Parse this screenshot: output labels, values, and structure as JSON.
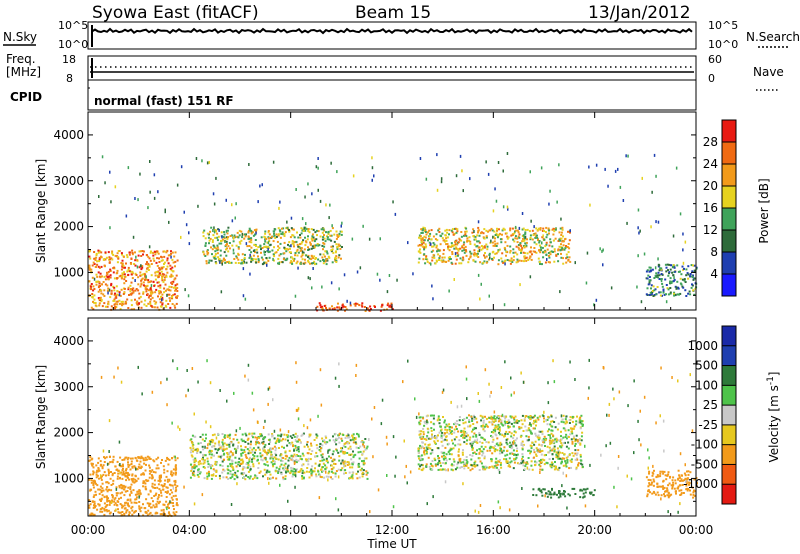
{
  "header": {
    "title": "Syowa East (fitACF)",
    "beam": "Beam 15",
    "date": "13/Jan/2012"
  },
  "left_labels": {
    "nsky": "N.Sky",
    "freq_line1": "Freq.",
    "freq_line2": "[MHz]",
    "cpid": "CPID"
  },
  "right_labels": {
    "nsearch": "N.Search",
    "nave": "Nave"
  },
  "small_ticks": {
    "noise_left_top": "10^5",
    "noise_left_bottom": "10^0",
    "noise_right_top": "10^5",
    "noise_right_bottom": "10^0",
    "freq_left_top": "18",
    "freq_left_bottom": "8",
    "nave_right_top": "60",
    "nave_right_bottom": "0"
  },
  "cpid_text": "normal (fast) 151 RF",
  "colors": {
    "power_scale": [
      "#1a1aff",
      "#1f3fb0",
      "#2e6b3a",
      "#3fa35a",
      "#e6d21f",
      "#f29a1a",
      "#f06a12",
      "#e81a12"
    ],
    "velocity_scale": [
      "#e41a12",
      "#f05a12",
      "#f29a1a",
      "#e6c81f",
      "#c8c8c8",
      "#4ec34a",
      "#2e7a3a",
      "#1f3fb0",
      "#1a2aa8"
    ]
  },
  "chart_data": [
    {
      "type": "heatmap",
      "name": "Power",
      "ylabel": "Slant Range [km]",
      "xlim": [
        "00:00",
        "24:00"
      ],
      "ylim": [
        180,
        4500
      ],
      "y_ticks": [
        "1000",
        "2000",
        "3000",
        "4000"
      ],
      "colorbar": {
        "label": "Power [dB]",
        "ticks": [
          "4",
          "8",
          "12",
          "16",
          "20",
          "24",
          "28"
        ],
        "range": [
          0,
          30
        ]
      },
      "features": [
        {
          "time_start": "00:00",
          "time_end": "03:30",
          "range_start": 200,
          "range_end": 1500,
          "power_db": 22
        },
        {
          "time_start": "04:30",
          "time_end": "10:00",
          "range_start": 1200,
          "range_end": 2000,
          "power_db": 16
        },
        {
          "time_start": "13:00",
          "time_end": "19:00",
          "range_start": 1200,
          "range_end": 2000,
          "power_db": 18
        },
        {
          "time_start": "09:00",
          "time_end": "12:00",
          "range_start": 180,
          "range_end": 350,
          "power_db": 26
        },
        {
          "time_start": "22:00",
          "time_end": "24:00",
          "range_start": 500,
          "range_end": 1200,
          "power_db": 10
        }
      ]
    },
    {
      "type": "heatmap",
      "name": "Velocity",
      "ylabel": "Slant Range [km]",
      "xlabel": "Time UT",
      "xlim": [
        "00:00",
        "24:00"
      ],
      "ylim": [
        180,
        4500
      ],
      "x_ticks": [
        "00:00",
        "04:00",
        "08:00",
        "12:00",
        "16:00",
        "20:00",
        "00:00"
      ],
      "y_ticks": [
        "1000",
        "2000",
        "3000",
        "4000"
      ],
      "colorbar": {
        "label": "Velocity [m s^-1]",
        "ticks": [
          "1000",
          "500",
          "100",
          "25",
          "-25",
          "-100",
          "-500",
          "-1000"
        ]
      },
      "features": [
        {
          "time_start": "00:00",
          "time_end": "03:30",
          "range_start": 200,
          "range_end": 1500,
          "velocity": -300
        },
        {
          "time_start": "04:00",
          "time_end": "11:00",
          "range_start": 1000,
          "range_end": 2000,
          "velocity": 0
        },
        {
          "time_start": "13:00",
          "time_end": "19:30",
          "range_start": 1200,
          "range_end": 2400,
          "velocity": 0
        },
        {
          "time_start": "17:30",
          "time_end": "20:00",
          "range_start": 600,
          "range_end": 800,
          "velocity": 300
        },
        {
          "time_start": "22:00",
          "time_end": "24:00",
          "range_start": 600,
          "range_end": 1200,
          "velocity": -300
        }
      ]
    }
  ]
}
